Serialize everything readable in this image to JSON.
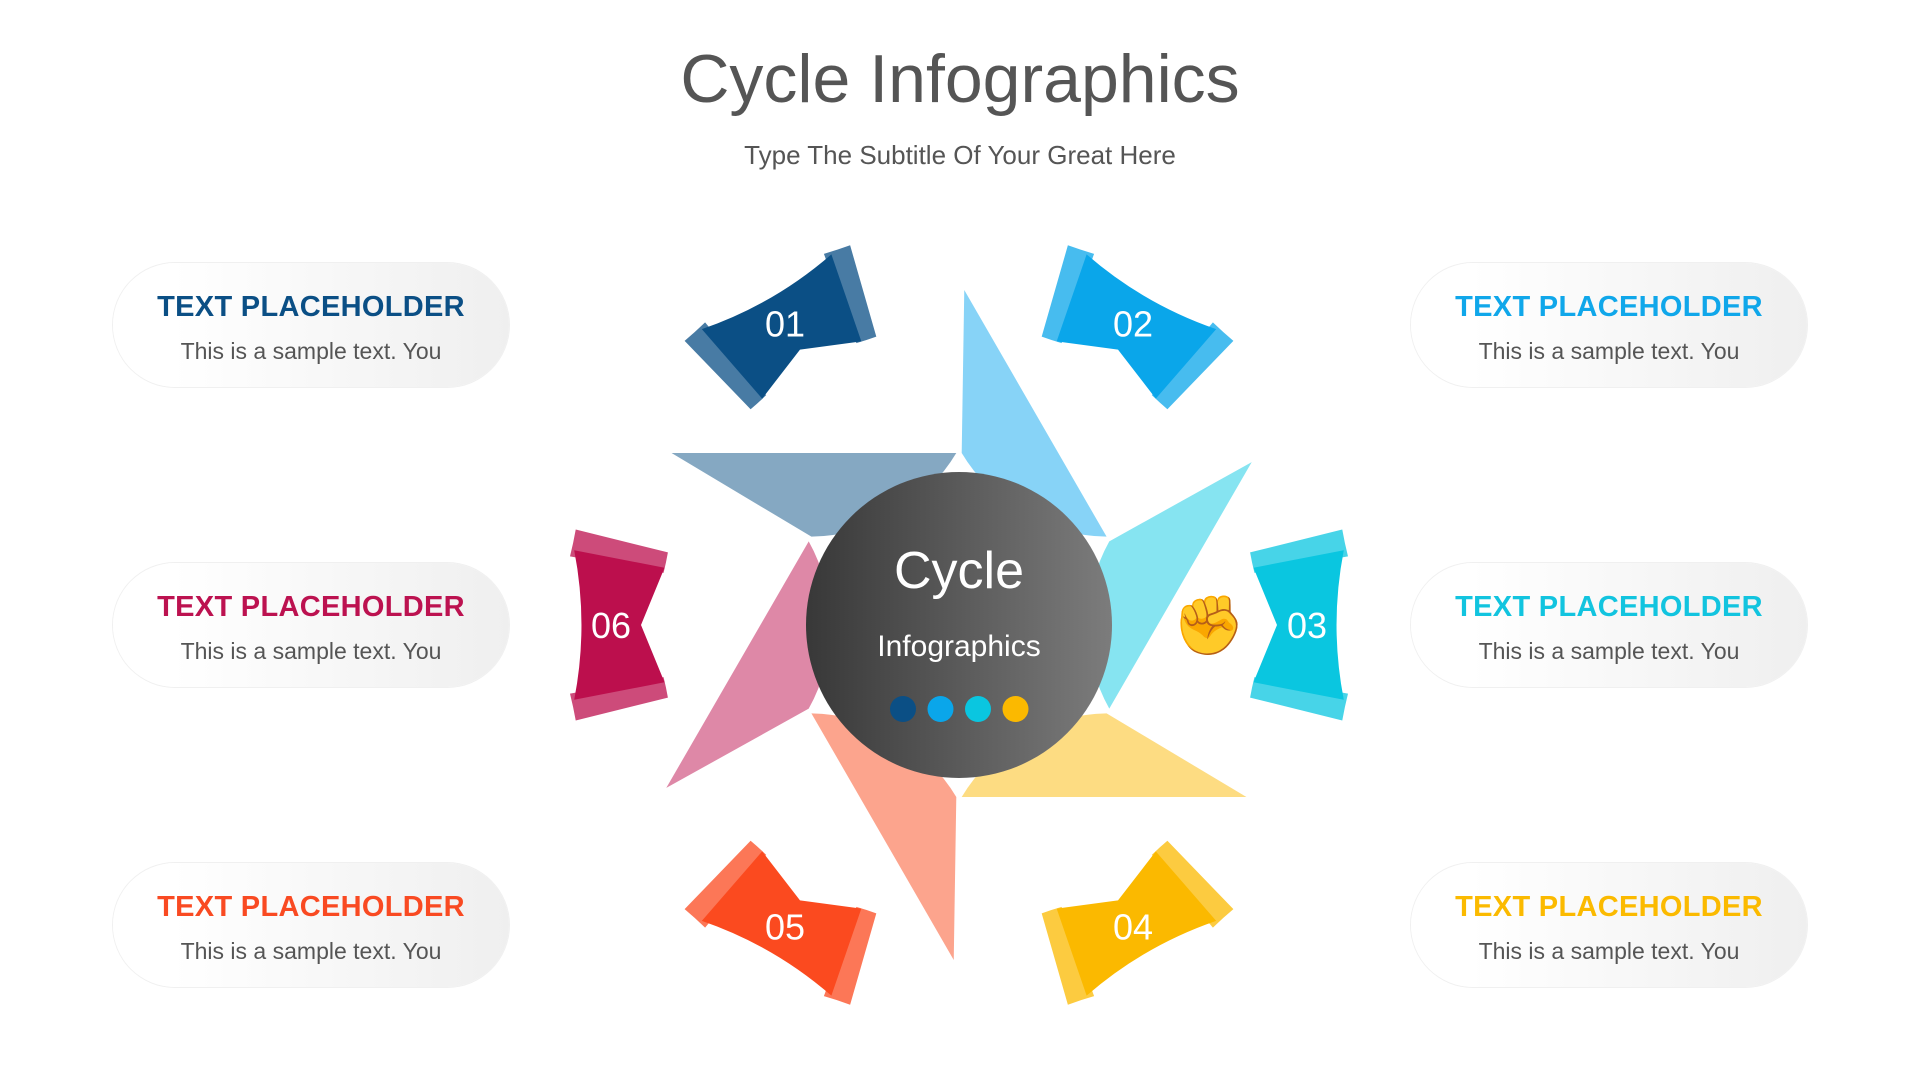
{
  "header": {
    "title": "Cycle Infographics",
    "subtitle": "Type The Subtitle Of Your Great Here"
  },
  "center": {
    "line1": "Cycle",
    "line2": "Infographics",
    "dot_colors": [
      "#0b4f85",
      "#0aa6ea",
      "#0ac6e0",
      "#fbb900"
    ]
  },
  "steps": [
    {
      "number": "01",
      "icon": "gear-user-icon",
      "color": "#0b4f85",
      "light": "#85a8c2"
    },
    {
      "number": "02",
      "icon": "shield-user-icon",
      "color": "#0aa6ea",
      "light": "#87d3f7"
    },
    {
      "number": "03",
      "icon": "fist-idea-icon",
      "color": "#0ac6e0",
      "light": "#86e4f1"
    },
    {
      "number": "04",
      "icon": "speaker-podium-icon",
      "color": "#fbb900",
      "light": "#fddc82"
    },
    {
      "number": "05",
      "icon": "brain-bulb-icon",
      "color": "#fb4a1f",
      "light": "#fca48d"
    },
    {
      "number": "06",
      "icon": "location-dollar-icon",
      "color": "#bc0f4d",
      "light": "#de88a7"
    }
  ],
  "cards": {
    "left": [
      {
        "title": "TEXT PLACEHOLDER",
        "text": "This is a sample text. You",
        "color": "#0b4f85"
      },
      {
        "title": "TEXT PLACEHOLDER",
        "text": "This is a sample text. You",
        "color": "#bc1250"
      },
      {
        "title": "TEXT PLACEHOLDER",
        "text": "This is a sample text. You",
        "color": "#f94a22"
      }
    ],
    "right": [
      {
        "title": "TEXT PLACEHOLDER",
        "text": "This is a sample text. You",
        "color": "#10a7ea"
      },
      {
        "title": "TEXT PLACEHOLDER",
        "text": "This is a sample text. You",
        "color": "#12c4df"
      },
      {
        "title": "TEXT PLACEHOLDER",
        "text": "This is a sample text. You",
        "color": "#fbba00"
      }
    ]
  }
}
